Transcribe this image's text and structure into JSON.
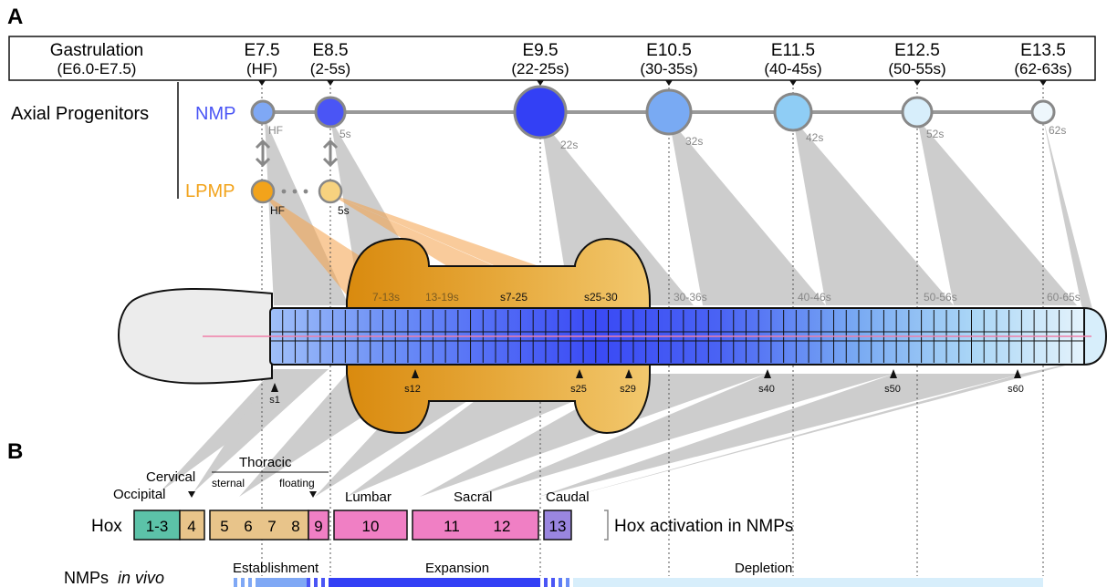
{
  "panel_labels": {
    "a": "A",
    "b": "B"
  },
  "stages": [
    {
      "title": "Gastrulation",
      "sub": "(E6.0-E7.5)"
    },
    {
      "title": "E7.5",
      "sub": "(HF)"
    },
    {
      "title": "E8.5",
      "sub": "(2-5s)"
    },
    {
      "title": "E9.5",
      "sub": "(22-25s)"
    },
    {
      "title": "E10.5",
      "sub": "(30-35s)"
    },
    {
      "title": "E11.5",
      "sub": "(40-45s)"
    },
    {
      "title": "E12.5",
      "sub": "(50-55s)"
    },
    {
      "title": "E13.5",
      "sub": "(62-63s)"
    }
  ],
  "axial_progenitors_label": "Axial Progenitors",
  "nmp": {
    "label": "NMP",
    "color": "#4a55f5",
    "nodes": [
      {
        "tag": "HF",
        "fill": "#7fa8f5"
      },
      {
        "tag": "5s",
        "fill": "#4a55f5"
      },
      {
        "tag": "22s",
        "fill": "#3340f5"
      },
      {
        "tag": "32s",
        "fill": "#79aaf3"
      },
      {
        "tag": "42s",
        "fill": "#8fcdf5"
      },
      {
        "tag": "52s",
        "fill": "#d7eefb"
      },
      {
        "tag": "62s",
        "fill": "#eef7fc"
      }
    ]
  },
  "lpmp": {
    "label": "LPMP",
    "color": "#f2a31b",
    "nodes": [
      {
        "tag": "HF",
        "fill": "#f2a31b"
      },
      {
        "tag": "5s",
        "fill": "#f7d27f"
      }
    ]
  },
  "embryo": {
    "ranges": [
      "7-13s",
      "13-19s",
      "s7-25",
      "s25-30",
      "30-36s",
      "40-46s",
      "50-56s",
      "60-65s"
    ],
    "somite_markers": [
      "s1",
      "s12",
      "s25",
      "s29",
      "s40",
      "s50",
      "s60"
    ],
    "somite_count": 65
  },
  "vertebral_regions": {
    "occipital": "Occipital",
    "cervical": "Cervical",
    "thoracic": "Thoracic",
    "sternal": "sternal",
    "floating": "floating",
    "lumbar": "Lumbar",
    "sacral": "Sacral",
    "caudal": "Caudal"
  },
  "hox": {
    "label": "Hox",
    "boxes": [
      {
        "numbers": [
          "1-3"
        ],
        "fill": "#5cc2a8"
      },
      {
        "numbers": [
          "4"
        ],
        "fill": "#e8c48a"
      },
      {
        "numbers": [
          "5",
          "6",
          "7",
          "8"
        ],
        "fill": "#e8c48a"
      },
      {
        "numbers": [
          "9"
        ],
        "fill": "#f07fc4"
      },
      {
        "numbers": [
          "10"
        ],
        "fill": "#f07fc4"
      },
      {
        "numbers": [
          "11",
          "12"
        ],
        "fill": "#f07fc4"
      },
      {
        "numbers": [
          "13"
        ],
        "fill": "#9a86e0"
      }
    ],
    "caption": "Hox activation in NMPs"
  },
  "nmps_in_vivo": {
    "label": "NMPs",
    "label_italic": "in vivo",
    "phases": [
      "Establishment",
      "Expansion",
      "Depletion"
    ]
  }
}
